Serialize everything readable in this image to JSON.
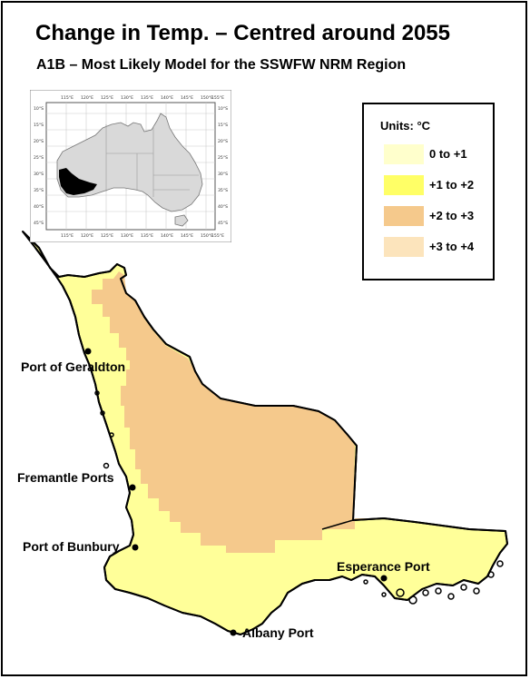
{
  "title": "Change in Temp. – Centred around 2055",
  "subtitle": "A1B – Most Likely Model for the SSWFW NRM Region",
  "legend": {
    "title": "Units: °C",
    "items": [
      {
        "label": "0 to +1",
        "color": "#FFFFCC"
      },
      {
        "label": "+1 to +2",
        "color": "#FFFF66"
      },
      {
        "label": "+2 to +3",
        "color": "#F5C98C"
      },
      {
        "label": "+3 to +4",
        "color": "#FCE4BC"
      }
    ]
  },
  "region_colors": {
    "coastal": "#FFFF99",
    "inland": "#F5C98C",
    "outline": "#000000"
  },
  "inset_map": {
    "top_ticks": [
      "115°E",
      "120°E",
      "125°E",
      "130°E",
      "135°E",
      "140°E",
      "145°E",
      "150°E",
      "155°E"
    ],
    "bottom_ticks": [
      "115°E",
      "120°E",
      "125°E",
      "130°E",
      "135°E",
      "140°E",
      "145°E",
      "150°E",
      "155°E"
    ],
    "left_ticks": [
      "10°S",
      "15°S",
      "20°S",
      "25°S",
      "30°S",
      "35°S",
      "40°S",
      "45°S"
    ],
    "right_ticks": [
      "10°S",
      "15°S",
      "20°S",
      "25°S",
      "30°S",
      "35°S",
      "40°S",
      "45°S"
    ]
  },
  "ports": [
    {
      "name": "Port of Geraldton"
    },
    {
      "name": "Fremantle Ports"
    },
    {
      "name": "Port of Bunbury"
    },
    {
      "name": "Esperance Port"
    },
    {
      "name": "Albany Port"
    }
  ]
}
